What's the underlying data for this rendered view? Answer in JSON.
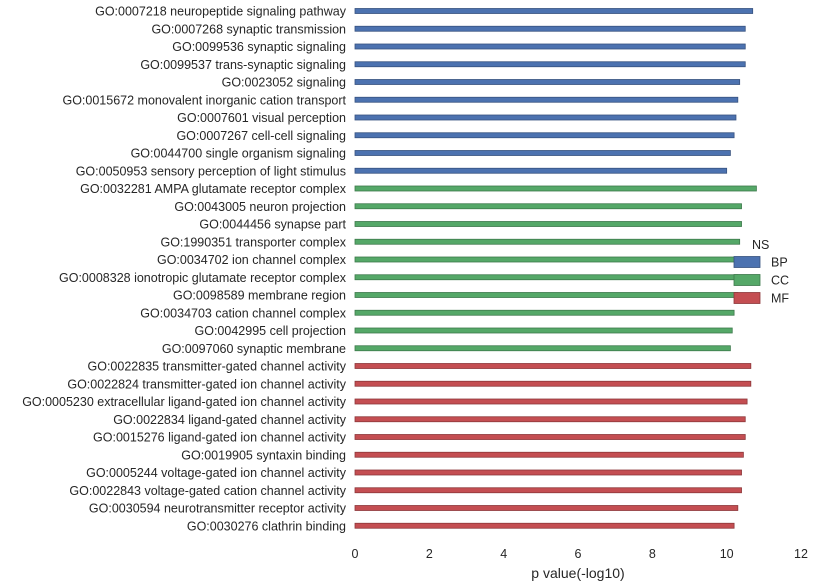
{
  "chart_data": {
    "type": "bar",
    "orientation": "horizontal",
    "xlabel": "p value(-log10)",
    "xlim": [
      0,
      12
    ],
    "xticks": [
      0,
      2,
      4,
      6,
      8,
      10,
      12
    ],
    "grid": false,
    "legend": {
      "title": "NS",
      "placement": "right",
      "entries": [
        {
          "name": "BP",
          "color": "#4c72b0"
        },
        {
          "name": "CC",
          "color": "#55a868"
        },
        {
          "name": "MF",
          "color": "#c44e52"
        }
      ]
    },
    "categories": [
      "GO:0007218 neuropeptide signaling pathway",
      "GO:0007268 synaptic transmission",
      "GO:0099536 synaptic signaling",
      "GO:0099537 trans-synaptic signaling",
      "GO:0023052 signaling",
      "GO:0015672 monovalent inorganic cation transport",
      "GO:0007601 visual perception",
      "GO:0007267 cell-cell signaling",
      "GO:0044700 single organism signaling",
      "GO:0050953 sensory perception of light stimulus",
      "GO:0032281 AMPA glutamate receptor complex",
      "GO:0043005 neuron projection",
      "GO:0044456 synapse part",
      "GO:1990351 transporter complex",
      "GO:0034702 ion channel complex",
      "GO:0008328 ionotropic glutamate receptor complex",
      "GO:0098589 membrane region",
      "GO:0034703 cation channel complex",
      "GO:0042995 cell projection",
      "GO:0097060 synaptic membrane",
      "GO:0022835 transmitter-gated channel activity",
      "GO:0022824 transmitter-gated ion channel activity",
      "GO:0005230 extracellular ligand-gated ion channel activity",
      "GO:0022834 ligand-gated channel activity",
      "GO:0015276 ligand-gated ion channel activity",
      "GO:0019905 syntaxin binding",
      "GO:0005244 voltage-gated ion channel activity",
      "GO:0022843 voltage-gated cation channel activity",
      "GO:0030594 neurotransmitter receptor activity",
      "GO:0030276 clathrin binding"
    ],
    "values": [
      10.7,
      10.5,
      10.5,
      10.5,
      10.35,
      10.3,
      10.25,
      10.2,
      10.1,
      10.0,
      10.8,
      10.4,
      10.4,
      10.35,
      10.3,
      10.3,
      10.3,
      10.2,
      10.15,
      10.1,
      10.65,
      10.65,
      10.55,
      10.5,
      10.5,
      10.45,
      10.4,
      10.4,
      10.3,
      10.2
    ],
    "groups": [
      "BP",
      "BP",
      "BP",
      "BP",
      "BP",
      "BP",
      "BP",
      "BP",
      "BP",
      "BP",
      "CC",
      "CC",
      "CC",
      "CC",
      "CC",
      "CC",
      "CC",
      "CC",
      "CC",
      "CC",
      "MF",
      "MF",
      "MF",
      "MF",
      "MF",
      "MF",
      "MF",
      "MF",
      "MF",
      "MF"
    ]
  }
}
